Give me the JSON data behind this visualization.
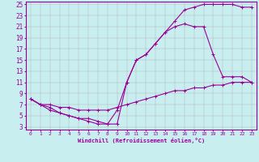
{
  "xlabel": "Windchill (Refroidissement éolien,°C)",
  "bg_color": "#c8eef0",
  "line_color": "#990099",
  "grid_color": "#b0b0b0",
  "ylim": [
    3,
    25
  ],
  "xlim": [
    0,
    23
  ],
  "yticks": [
    3,
    5,
    7,
    9,
    11,
    13,
    15,
    17,
    19,
    21,
    23,
    25
  ],
  "xticks": [
    0,
    1,
    2,
    3,
    4,
    5,
    6,
    7,
    8,
    9,
    10,
    11,
    12,
    13,
    14,
    15,
    16,
    17,
    18,
    19,
    20,
    21,
    22,
    23
  ],
  "line1_x": [
    0,
    1,
    2,
    3,
    4,
    5,
    6,
    7,
    8,
    9,
    10,
    11,
    12,
    13,
    14,
    15,
    16,
    17,
    18,
    19,
    20,
    21,
    22,
    23
  ],
  "line1_y": [
    8,
    7,
    6.5,
    5.5,
    5,
    4.5,
    4.5,
    4,
    3.5,
    3.5,
    11,
    15,
    16,
    18,
    20,
    22,
    24,
    24.5,
    25,
    25,
    25,
    25,
    24.5,
    24.5
  ],
  "line2_x": [
    0,
    1,
    2,
    3,
    4,
    5,
    6,
    7,
    8,
    9,
    10,
    11,
    12,
    13,
    14,
    15,
    16,
    17,
    18,
    19,
    20,
    21,
    22,
    23
  ],
  "line2_y": [
    8,
    7,
    6,
    5.5,
    5,
    4.5,
    4,
    3.5,
    3.5,
    6,
    11,
    15,
    16,
    18,
    20,
    21,
    21.5,
    21,
    21,
    16,
    12,
    12,
    12,
    11
  ],
  "line3_x": [
    0,
    1,
    2,
    3,
    4,
    5,
    6,
    7,
    8,
    9,
    10,
    11,
    12,
    13,
    14,
    15,
    16,
    17,
    18,
    19,
    20,
    21,
    22,
    23
  ],
  "line3_y": [
    8,
    7,
    7,
    6.5,
    6.5,
    6,
    6,
    6,
    6,
    6.5,
    7,
    7.5,
    8,
    8.5,
    9,
    9.5,
    9.5,
    10,
    10,
    10.5,
    10.5,
    11,
    11,
    11
  ],
  "xlabel_fontsize": 5.0,
  "ytick_fontsize": 5.5,
  "xtick_fontsize": 4.5
}
